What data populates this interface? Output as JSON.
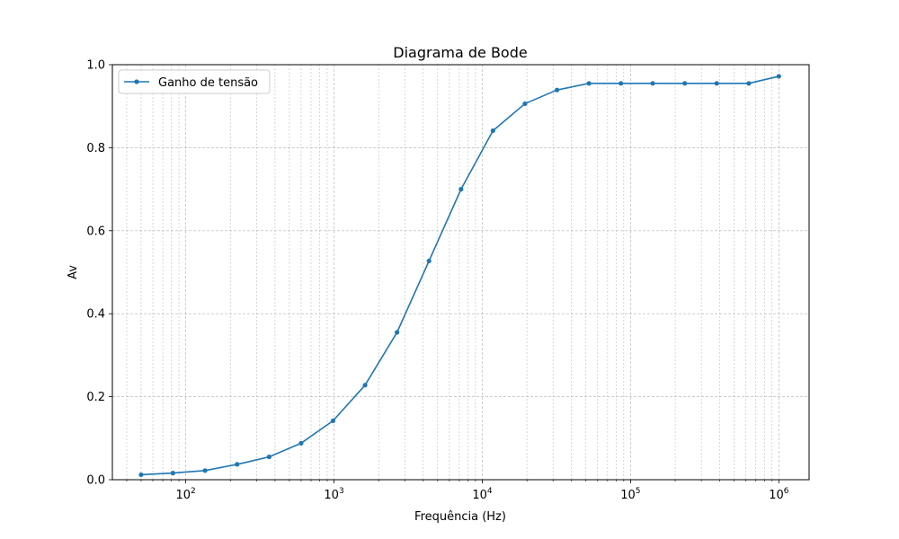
{
  "chart_data": {
    "type": "line",
    "title": "Diagrama de Bode",
    "xlabel": "Frequência (Hz)",
    "ylabel": "Av",
    "x_scale": "log",
    "xlim": [
      32,
      1600000
    ],
    "ylim": [
      0,
      1.0
    ],
    "x_major_ticks": [
      {
        "value": 100,
        "base": "10",
        "exp": "2"
      },
      {
        "value": 1000,
        "base": "10",
        "exp": "3"
      },
      {
        "value": 10000,
        "base": "10",
        "exp": "4"
      },
      {
        "value": 100000,
        "base": "10",
        "exp": "5"
      },
      {
        "value": 1000000,
        "base": "10",
        "exp": "6"
      }
    ],
    "y_ticks": [
      {
        "value": 0.0,
        "label": "0.0"
      },
      {
        "value": 0.2,
        "label": "0.2"
      },
      {
        "value": 0.4,
        "label": "0.4"
      },
      {
        "value": 0.6,
        "label": "0.6"
      },
      {
        "value": 0.8,
        "label": "0.8"
      },
      {
        "value": 1.0,
        "label": "1.0"
      }
    ],
    "grid": "both (major and minor, dashed)",
    "legend_position": "top-left",
    "series": [
      {
        "name": "Ganho de tensão",
        "color": "#1f77b4",
        "x": [
          50,
          82,
          135,
          222,
          365,
          600,
          985,
          1620,
          2660,
          4370,
          7190,
          11800,
          19400,
          31900,
          52400,
          86100,
          141000,
          232000,
          381000,
          627000,
          1000000
        ],
        "y": [
          0.012,
          0.016,
          0.022,
          0.037,
          0.055,
          0.088,
          0.142,
          0.228,
          0.355,
          0.527,
          0.7,
          0.841,
          0.906,
          0.939,
          0.955,
          0.955,
          0.955,
          0.955,
          0.955,
          0.955,
          0.972
        ]
      }
    ]
  }
}
